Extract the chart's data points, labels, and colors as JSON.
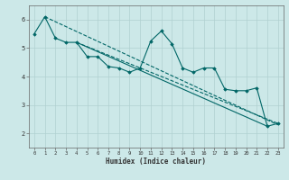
{
  "xlabel": "Humidex (Indice chaleur)",
  "ylabel": "",
  "bg_color": "#cce8e8",
  "grid_color": "#b0d0d0",
  "line_color": "#006666",
  "xlim": [
    -0.5,
    23.5
  ],
  "ylim": [
    1.5,
    6.5
  ],
  "xticks": [
    0,
    1,
    2,
    3,
    4,
    5,
    6,
    7,
    8,
    9,
    10,
    11,
    12,
    13,
    14,
    15,
    16,
    17,
    18,
    19,
    20,
    21,
    22,
    23
  ],
  "yticks": [
    2,
    3,
    4,
    5,
    6
  ],
  "series": [
    {
      "x": [
        0,
        1,
        2,
        3,
        4,
        5,
        6,
        7,
        8,
        9,
        10,
        11,
        12,
        13,
        14,
        15,
        16,
        17,
        18,
        19,
        20,
        21,
        22,
        23
      ],
      "y": [
        5.5,
        6.1,
        5.35,
        5.2,
        5.2,
        4.7,
        4.7,
        4.35,
        4.3,
        4.15,
        4.3,
        5.25,
        5.6,
        5.15,
        4.3,
        4.15,
        4.3,
        4.3,
        3.55,
        3.5,
        3.5,
        3.6,
        2.25,
        2.35
      ],
      "marker": "D",
      "markersize": 1.8,
      "linewidth": 0.8,
      "linestyle": "-"
    },
    {
      "x": [
        1,
        23
      ],
      "y": [
        6.1,
        2.3
      ],
      "marker": null,
      "linewidth": 0.8,
      "linestyle": "--"
    },
    {
      "x": [
        4,
        23
      ],
      "y": [
        5.2,
        2.35
      ],
      "marker": null,
      "linewidth": 0.8,
      "linestyle": "--"
    },
    {
      "x": [
        4,
        22
      ],
      "y": [
        5.2,
        2.25
      ],
      "marker": null,
      "linewidth": 0.8,
      "linestyle": "-"
    }
  ]
}
